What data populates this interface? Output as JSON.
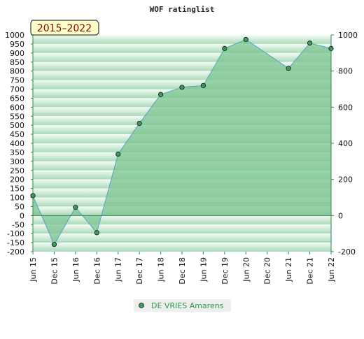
{
  "chart_data": {
    "type": "area",
    "title": "WOF ratinglist",
    "period_badge": "2015–2022",
    "x_categories": [
      "Jun 15",
      "Dec 15",
      "Jun 16",
      "Dec 16",
      "Jun 17",
      "Dec 17",
      "Jun 18",
      "Dec 18",
      "Jun 19",
      "Dec 19",
      "Jun 20",
      "Dec 20",
      "Jun 21",
      "Dec 21",
      "Jun 22"
    ],
    "ylim": [
      -200,
      1000
    ],
    "left_ticks": [
      -200,
      -150,
      -100,
      -50,
      0,
      50,
      100,
      150,
      200,
      250,
      300,
      350,
      400,
      450,
      500,
      550,
      600,
      650,
      700,
      750,
      800,
      850,
      900,
      950,
      1000
    ],
    "right_ticks": [
      -200,
      0,
      200,
      400,
      600,
      800,
      1000
    ],
    "grid": true,
    "legend_position": "bottom",
    "series": [
      {
        "name": "DE VRIES Amarens",
        "points": [
          {
            "x": "Jun 15",
            "y": 110
          },
          {
            "x": "Dec 15",
            "y": -160
          },
          {
            "x": "Jun 16",
            "y": 45
          },
          {
            "x": "Dec 16",
            "y": -95
          },
          {
            "x": "Jun 17",
            "y": 340
          },
          {
            "x": "Dec 17",
            "y": 510
          },
          {
            "x": "Jun 18",
            "y": 670
          },
          {
            "x": "Dec 18",
            "y": 710
          },
          {
            "x": "Jun 19",
            "y": 720
          },
          {
            "x": "Dec 19",
            "y": 925
          },
          {
            "x": "Jun 20",
            "y": 975
          },
          {
            "x": "Jun 21",
            "y": 815
          },
          {
            "x": "Dec 21",
            "y": 955
          },
          {
            "x": "Jun 22",
            "y": 925
          }
        ]
      }
    ],
    "colors": {
      "fill": "#7cc492",
      "line": "#5aa0c8",
      "marker": "#3c9b5c",
      "badge_bg": "#ffffcc",
      "badge_text": "#8b0000",
      "legend_text": "#2e9a4a",
      "legend_bg": "#eeeeee"
    }
  }
}
